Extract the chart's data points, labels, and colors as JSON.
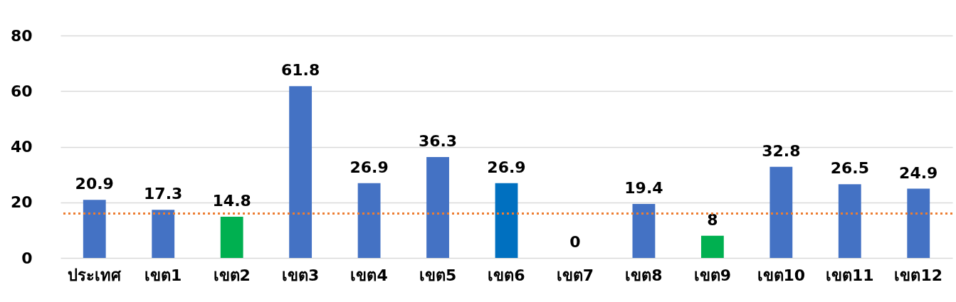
{
  "chart_data": {
    "type": "bar",
    "categories": [
      "ประเทศ",
      "เขต1",
      "เขต2",
      "เขต3",
      "เขต4",
      "เขต5",
      "เขต6",
      "เขต7",
      "เขต8",
      "เขต9",
      "เขต10",
      "เขต11",
      "เขต12"
    ],
    "values": [
      20.9,
      17.3,
      14.8,
      61.8,
      26.9,
      36.3,
      26.9,
      0,
      19.4,
      8,
      32.8,
      26.5,
      24.9
    ],
    "colors": [
      "#4472c4",
      "#4472c4",
      "#00b050",
      "#4472c4",
      "#4472c4",
      "#4472c4",
      "#0070c0",
      "#00b050",
      "#4472c4",
      "#00b050",
      "#4472c4",
      "#4472c4",
      "#4472c4"
    ],
    "ylim": [
      0,
      80
    ],
    "yticks": [
      0,
      20,
      40,
      60,
      80
    ],
    "grid": "y",
    "data_labels": true,
    "ref_lines": [
      {
        "axis": "y",
        "value": 16,
        "color": "#ed7d31",
        "line_style": "dotted"
      }
    ]
  }
}
